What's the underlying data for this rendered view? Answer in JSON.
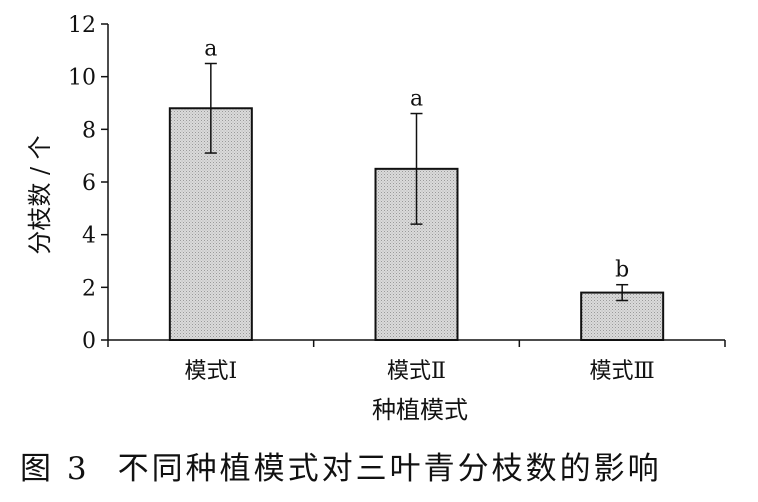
{
  "chart_data": {
    "type": "bar",
    "xlabel": "种植模式",
    "ylabel": "分枝数 / 个",
    "ylim": [
      0,
      12
    ],
    "yticks": [
      0,
      2,
      4,
      6,
      8,
      10,
      12
    ],
    "categories": [
      "模式Ⅰ",
      "模式Ⅱ",
      "模式Ⅲ"
    ],
    "values": [
      8.8,
      6.5,
      1.8
    ],
    "error_upper": [
      10.5,
      8.6,
      2.1
    ],
    "error_lower": [
      7.1,
      4.4,
      1.5
    ],
    "significance": [
      "a",
      "a",
      "b"
    ],
    "colors": {
      "bar_fill": "#d4d4d4",
      "bar_stroke": "#111111",
      "axis": "#111111"
    },
    "grid": false,
    "legend": "none"
  },
  "caption": {
    "number": "图 3",
    "text": "不同种植模式对三叶青分枝数的影响"
  }
}
